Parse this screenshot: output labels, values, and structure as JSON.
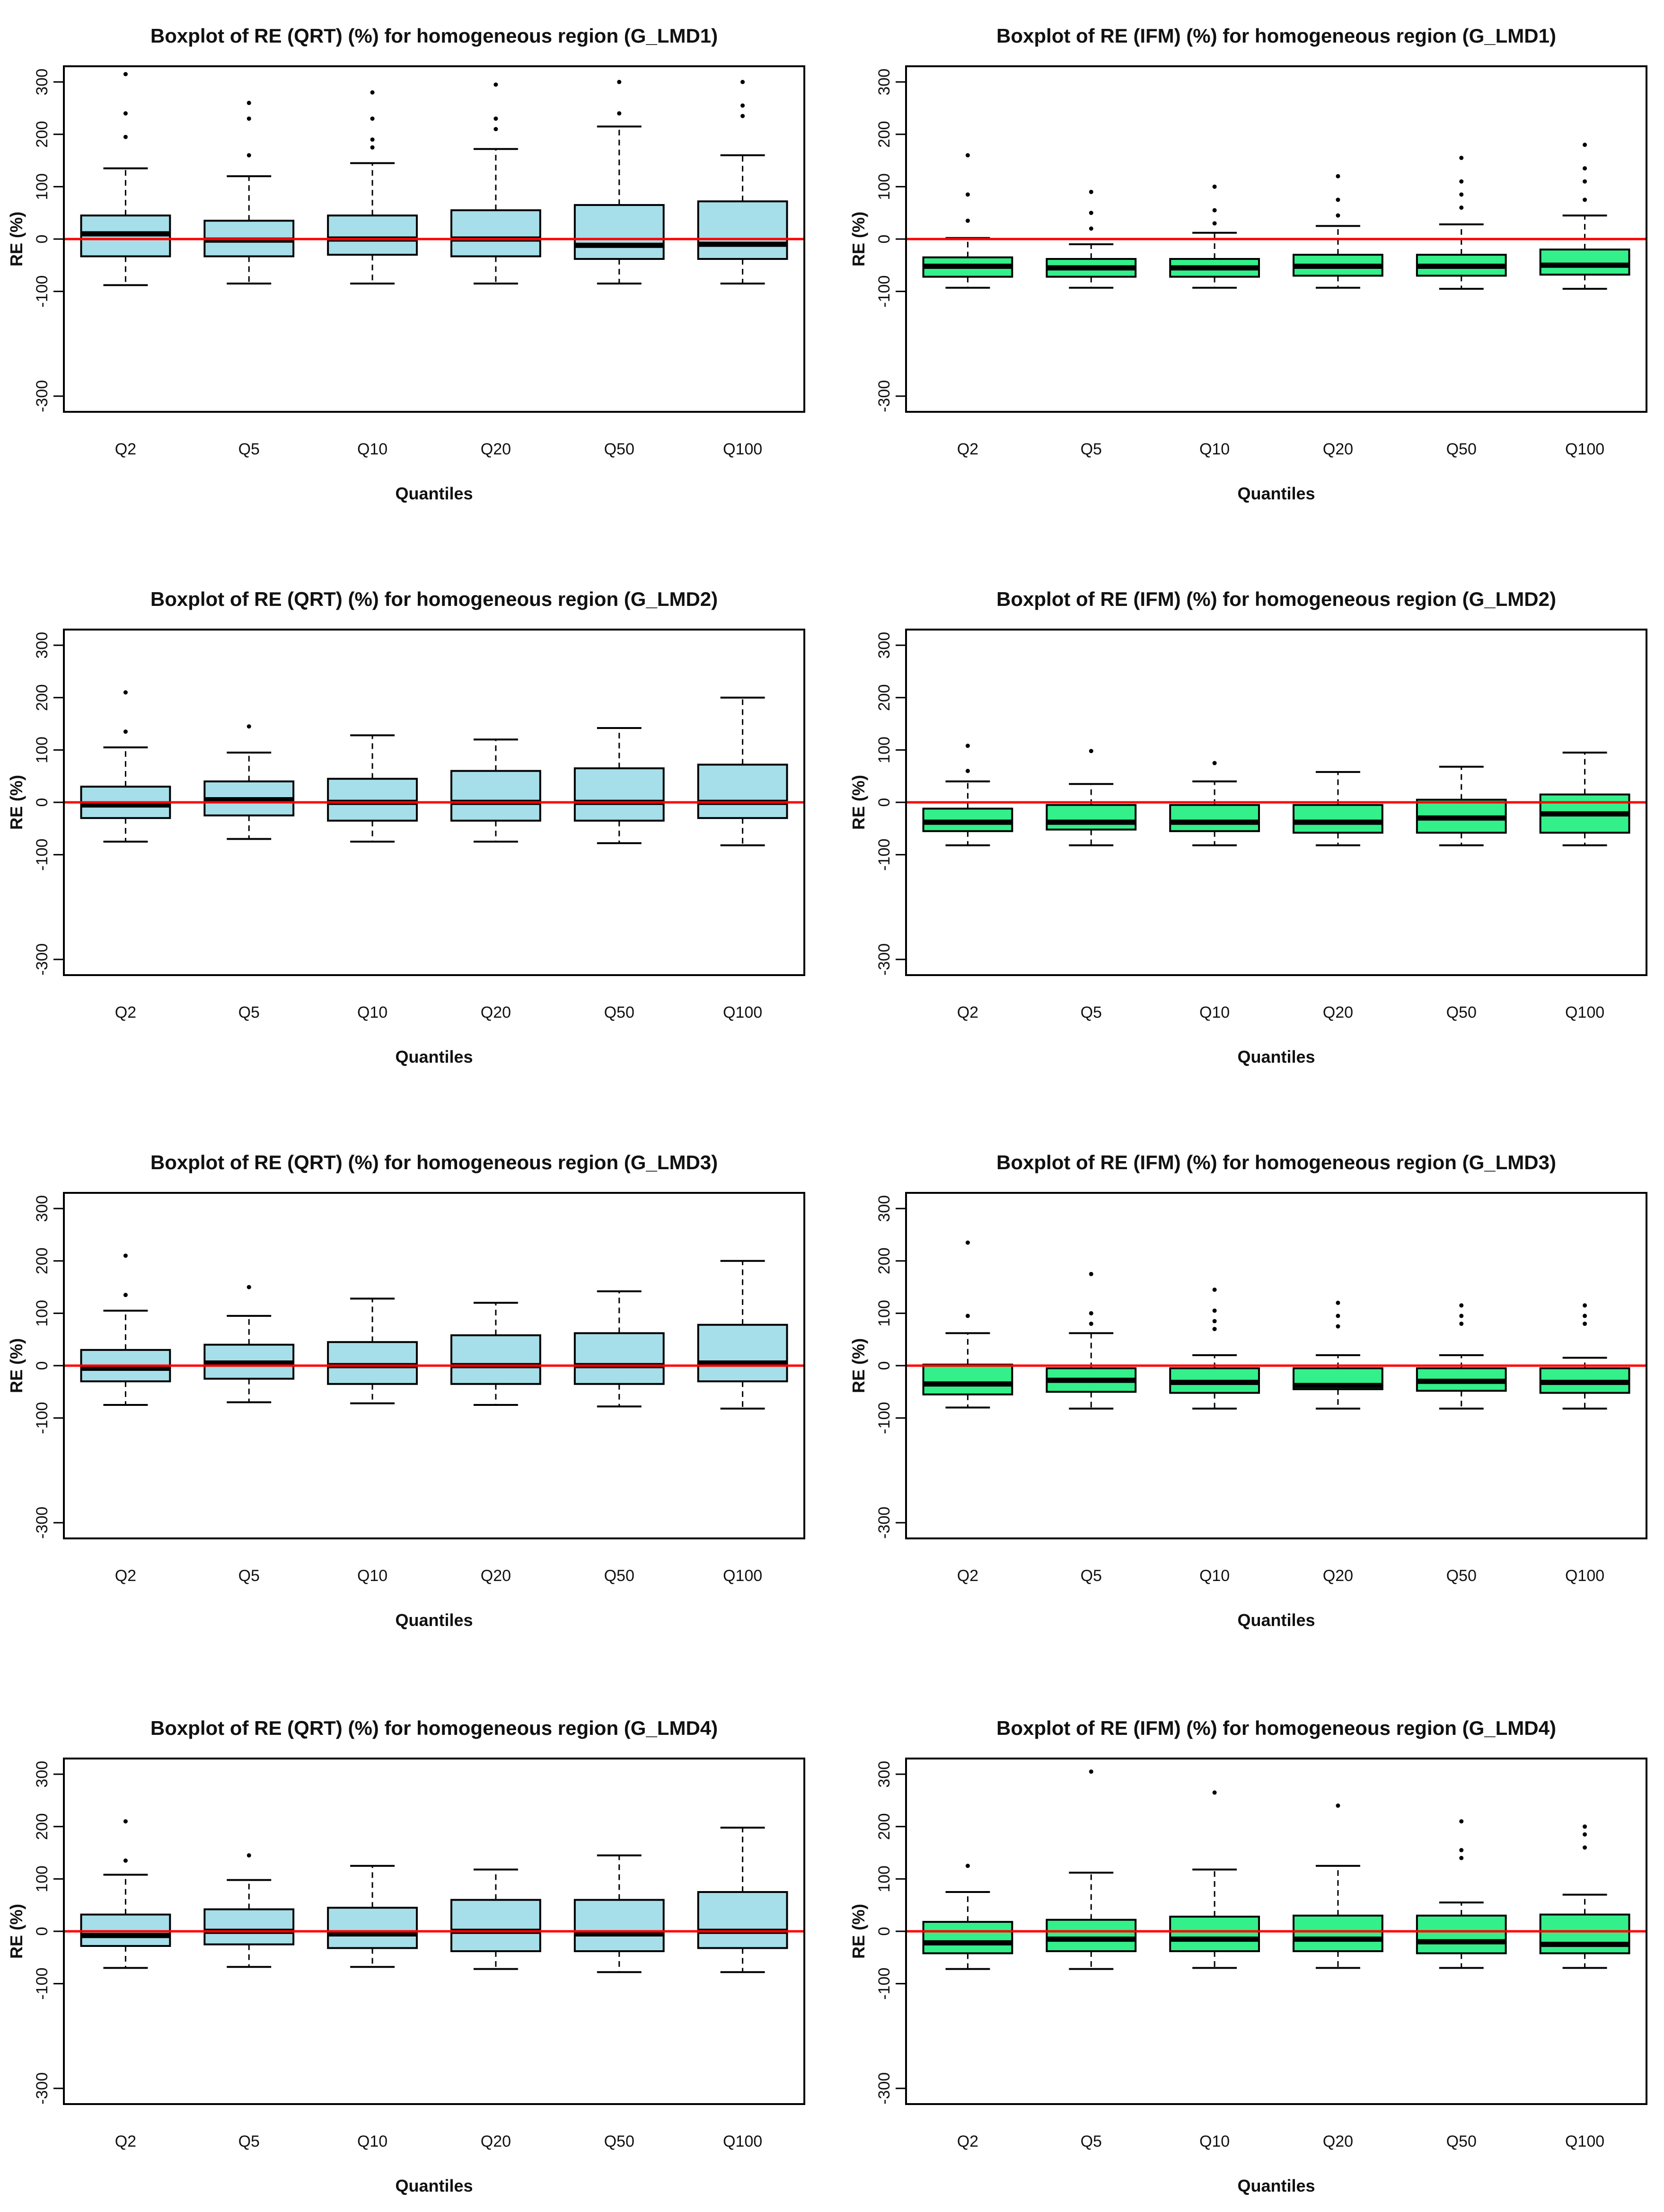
{
  "figure": {
    "background": "#ffffff",
    "reference_line_color": "#ff0000",
    "axis_color": "#000000"
  },
  "chart_data": [
    {
      "type": "boxplot",
      "title": "Boxplot of RE (QRT) (%) for homogeneous region (G_LMD1)",
      "xlabel": "Quantiles",
      "ylabel": "RE (%)",
      "ylim": [
        -330,
        330
      ],
      "yticks": [
        -300,
        -100,
        0,
        100,
        200,
        300
      ],
      "ytick_labels": [
        "-300",
        "-100",
        "0",
        "100",
        "200",
        "300"
      ],
      "reference_line_y": 0,
      "box_color": "#a6dfe9",
      "categories": [
        "Q2",
        "Q5",
        "Q10",
        "Q20",
        "Q50",
        "Q100"
      ],
      "boxes": [
        {
          "min": -88,
          "q1": -33,
          "median": 10,
          "q3": 45,
          "max": 135,
          "outliers": [
            195,
            240,
            315
          ]
        },
        {
          "min": -85,
          "q1": -33,
          "median": -2,
          "q3": 35,
          "max": 120,
          "outliers": [
            160,
            230,
            260
          ]
        },
        {
          "min": -85,
          "q1": -30,
          "median": 0,
          "q3": 45,
          "max": 145,
          "outliers": [
            175,
            190,
            230,
            280
          ]
        },
        {
          "min": -85,
          "q1": -33,
          "median": 0,
          "q3": 55,
          "max": 172,
          "outliers": [
            210,
            230,
            295
          ]
        },
        {
          "min": -85,
          "q1": -38,
          "median": -12,
          "q3": 65,
          "max": 215,
          "outliers": [
            240,
            300
          ]
        },
        {
          "min": -85,
          "q1": -38,
          "median": -10,
          "q3": 72,
          "max": 160,
          "outliers": [
            235,
            255,
            300
          ]
        }
      ]
    },
    {
      "type": "boxplot",
      "title": "Boxplot of RE (IFM) (%) for homogeneous region (G_LMD1)",
      "xlabel": "Quantiles",
      "ylabel": "RE (%)",
      "ylim": [
        -330,
        330
      ],
      "yticks": [
        -300,
        -100,
        0,
        100,
        200,
        300
      ],
      "ytick_labels": [
        "-300",
        "-100",
        "0",
        "100",
        "200",
        "300"
      ],
      "reference_line_y": 0,
      "box_color": "#33f08a",
      "categories": [
        "Q2",
        "Q5",
        "Q10",
        "Q20",
        "Q50",
        "Q100"
      ],
      "boxes": [
        {
          "min": -93,
          "q1": -72,
          "median": -52,
          "q3": -35,
          "max": 2,
          "outliers": [
            35,
            85,
            160
          ]
        },
        {
          "min": -93,
          "q1": -72,
          "median": -55,
          "q3": -38,
          "max": -10,
          "outliers": [
            20,
            50,
            90
          ]
        },
        {
          "min": -93,
          "q1": -72,
          "median": -55,
          "q3": -38,
          "max": 12,
          "outliers": [
            30,
            55,
            100
          ]
        },
        {
          "min": -93,
          "q1": -70,
          "median": -52,
          "q3": -30,
          "max": 25,
          "outliers": [
            45,
            75,
            120
          ]
        },
        {
          "min": -95,
          "q1": -70,
          "median": -52,
          "q3": -30,
          "max": 28,
          "outliers": [
            60,
            85,
            110,
            155
          ]
        },
        {
          "min": -95,
          "q1": -68,
          "median": -50,
          "q3": -20,
          "max": 45,
          "outliers": [
            75,
            110,
            135,
            180
          ]
        }
      ]
    },
    {
      "type": "boxplot",
      "title": "Boxplot of RE (QRT) (%) for homogeneous region (G_LMD2)",
      "xlabel": "Quantiles",
      "ylabel": "RE (%)",
      "ylim": [
        -330,
        330
      ],
      "yticks": [
        -300,
        -100,
        0,
        100,
        200,
        300
      ],
      "ytick_labels": [
        "-300",
        "-100",
        "0",
        "100",
        "200",
        "300"
      ],
      "reference_line_y": 0,
      "box_color": "#a6dfe9",
      "categories": [
        "Q2",
        "Q5",
        "Q10",
        "Q20",
        "Q50",
        "Q100"
      ],
      "boxes": [
        {
          "min": -75,
          "q1": -30,
          "median": -5,
          "q3": 30,
          "max": 105,
          "outliers": [
            135,
            210
          ]
        },
        {
          "min": -70,
          "q1": -25,
          "median": 5,
          "q3": 40,
          "max": 95,
          "outliers": [
            145
          ]
        },
        {
          "min": -75,
          "q1": -35,
          "median": 0,
          "q3": 45,
          "max": 128,
          "outliers": []
        },
        {
          "min": -75,
          "q1": -35,
          "median": 0,
          "q3": 60,
          "max": 120,
          "outliers": []
        },
        {
          "min": -78,
          "q1": -35,
          "median": 0,
          "q3": 65,
          "max": 142,
          "outliers": []
        },
        {
          "min": -82,
          "q1": -30,
          "median": 0,
          "q3": 72,
          "max": 200,
          "outliers": []
        }
      ]
    },
    {
      "type": "boxplot",
      "title": "Boxplot of RE (IFM) (%) for homogeneous region (G_LMD2)",
      "xlabel": "Quantiles",
      "ylabel": "RE (%)",
      "ylim": [
        -330,
        330
      ],
      "yticks": [
        -300,
        -100,
        0,
        100,
        200,
        300
      ],
      "ytick_labels": [
        "-300",
        "-100",
        "0",
        "100",
        "200",
        "300"
      ],
      "reference_line_y": 0,
      "box_color": "#33f08a",
      "categories": [
        "Q2",
        "Q5",
        "Q10",
        "Q20",
        "Q50",
        "Q100"
      ],
      "boxes": [
        {
          "min": -82,
          "q1": -55,
          "median": -38,
          "q3": -12,
          "max": 40,
          "outliers": [
            60,
            108
          ]
        },
        {
          "min": -82,
          "q1": -52,
          "median": -38,
          "q3": -5,
          "max": 35,
          "outliers": [
            98
          ]
        },
        {
          "min": -82,
          "q1": -55,
          "median": -38,
          "q3": -5,
          "max": 40,
          "outliers": [
            75
          ]
        },
        {
          "min": -82,
          "q1": -58,
          "median": -38,
          "q3": -5,
          "max": 58,
          "outliers": []
        },
        {
          "min": -82,
          "q1": -58,
          "median": -30,
          "q3": 5,
          "max": 68,
          "outliers": []
        },
        {
          "min": -82,
          "q1": -58,
          "median": -22,
          "q3": 15,
          "max": 95,
          "outliers": []
        }
      ]
    },
    {
      "type": "boxplot",
      "title": "Boxplot of RE (QRT) (%) for homogeneous region (G_LMD3)",
      "xlabel": "Quantiles",
      "ylabel": "RE (%)",
      "ylim": [
        -330,
        330
      ],
      "yticks": [
        -300,
        -100,
        0,
        100,
        200,
        300
      ],
      "ytick_labels": [
        "-300",
        "-100",
        "0",
        "100",
        "200",
        "300"
      ],
      "reference_line_y": 0,
      "box_color": "#a6dfe9",
      "categories": [
        "Q2",
        "Q5",
        "Q10",
        "Q20",
        "Q50",
        "Q100"
      ],
      "boxes": [
        {
          "min": -75,
          "q1": -30,
          "median": -5,
          "q3": 30,
          "max": 105,
          "outliers": [
            135,
            210
          ]
        },
        {
          "min": -70,
          "q1": -25,
          "median": 5,
          "q3": 40,
          "max": 95,
          "outliers": [
            150
          ]
        },
        {
          "min": -72,
          "q1": -35,
          "median": 0,
          "q3": 45,
          "max": 128,
          "outliers": []
        },
        {
          "min": -75,
          "q1": -35,
          "median": 0,
          "q3": 58,
          "max": 120,
          "outliers": []
        },
        {
          "min": -78,
          "q1": -35,
          "median": 0,
          "q3": 62,
          "max": 142,
          "outliers": []
        },
        {
          "min": -82,
          "q1": -30,
          "median": 5,
          "q3": 78,
          "max": 200,
          "outliers": []
        }
      ]
    },
    {
      "type": "boxplot",
      "title": "Boxplot of RE (IFM) (%) for homogeneous region (G_LMD3)",
      "xlabel": "Quantiles",
      "ylabel": "RE (%)",
      "ylim": [
        -330,
        330
      ],
      "yticks": [
        -300,
        -100,
        0,
        100,
        200,
        300
      ],
      "ytick_labels": [
        "-300",
        "-100",
        "0",
        "100",
        "200",
        "300"
      ],
      "reference_line_y": 0,
      "box_color": "#33f08a",
      "categories": [
        "Q2",
        "Q5",
        "Q10",
        "Q20",
        "Q50",
        "Q100"
      ],
      "boxes": [
        {
          "min": -80,
          "q1": -55,
          "median": -35,
          "q3": 2,
          "max": 62,
          "outliers": [
            95,
            235
          ]
        },
        {
          "min": -82,
          "q1": -50,
          "median": -28,
          "q3": -5,
          "max": 62,
          "outliers": [
            80,
            100,
            175
          ]
        },
        {
          "min": -82,
          "q1": -52,
          "median": -32,
          "q3": -5,
          "max": 20,
          "outliers": [
            70,
            85,
            105,
            145
          ]
        },
        {
          "min": -82,
          "q1": -45,
          "median": -38,
          "q3": -5,
          "max": 20,
          "outliers": [
            75,
            95,
            120
          ]
        },
        {
          "min": -82,
          "q1": -48,
          "median": -30,
          "q3": -5,
          "max": 20,
          "outliers": [
            80,
            95,
            115
          ]
        },
        {
          "min": -82,
          "q1": -52,
          "median": -32,
          "q3": -5,
          "max": 15,
          "outliers": [
            80,
            95,
            115
          ]
        }
      ]
    },
    {
      "type": "boxplot",
      "title": "Boxplot of RE (QRT) (%) for homogeneous region (G_LMD4)",
      "xlabel": "Quantiles",
      "ylabel": "RE (%)",
      "ylim": [
        -330,
        330
      ],
      "yticks": [
        -300,
        -100,
        0,
        100,
        200,
        300
      ],
      "ytick_labels": [
        "-300",
        "-100",
        "0",
        "100",
        "200",
        "300"
      ],
      "reference_line_y": 0,
      "box_color": "#a6dfe9",
      "categories": [
        "Q2",
        "Q5",
        "Q10",
        "Q20",
        "Q50",
        "Q100"
      ],
      "boxes": [
        {
          "min": -70,
          "q1": -28,
          "median": -8,
          "q3": 32,
          "max": 108,
          "outliers": [
            135,
            210
          ]
        },
        {
          "min": -68,
          "q1": -25,
          "median": 0,
          "q3": 42,
          "max": 98,
          "outliers": [
            145
          ]
        },
        {
          "min": -68,
          "q1": -32,
          "median": -5,
          "q3": 45,
          "max": 125,
          "outliers": []
        },
        {
          "min": -72,
          "q1": -38,
          "median": 0,
          "q3": 60,
          "max": 118,
          "outliers": []
        },
        {
          "min": -78,
          "q1": -38,
          "median": -5,
          "q3": 60,
          "max": 145,
          "outliers": []
        },
        {
          "min": -78,
          "q1": -32,
          "median": 0,
          "q3": 75,
          "max": 198,
          "outliers": []
        }
      ]
    },
    {
      "type": "boxplot",
      "title": "Boxplot of RE (IFM) (%) for homogeneous region (G_LMD4)",
      "xlabel": "Quantiles",
      "ylabel": "RE (%)",
      "ylim": [
        -330,
        330
      ],
      "yticks": [
        -300,
        -100,
        0,
        100,
        200,
        300
      ],
      "ytick_labels": [
        "-300",
        "-100",
        "0",
        "100",
        "200",
        "300"
      ],
      "reference_line_y": 0,
      "box_color": "#33f08a",
      "categories": [
        "Q2",
        "Q5",
        "Q10",
        "Q20",
        "Q50",
        "Q100"
      ],
      "boxes": [
        {
          "min": -72,
          "q1": -42,
          "median": -22,
          "q3": 18,
          "max": 75,
          "outliers": [
            125
          ]
        },
        {
          "min": -72,
          "q1": -38,
          "median": -15,
          "q3": 22,
          "max": 112,
          "outliers": [
            305
          ]
        },
        {
          "min": -70,
          "q1": -38,
          "median": -15,
          "q3": 28,
          "max": 118,
          "outliers": [
            265
          ]
        },
        {
          "min": -70,
          "q1": -38,
          "median": -15,
          "q3": 30,
          "max": 125,
          "outliers": [
            240
          ]
        },
        {
          "min": -70,
          "q1": -42,
          "median": -20,
          "q3": 30,
          "max": 55,
          "outliers": [
            140,
            155,
            210
          ]
        },
        {
          "min": -70,
          "q1": -42,
          "median": -25,
          "q3": 32,
          "max": 70,
          "outliers": [
            160,
            185,
            200
          ]
        }
      ]
    }
  ]
}
